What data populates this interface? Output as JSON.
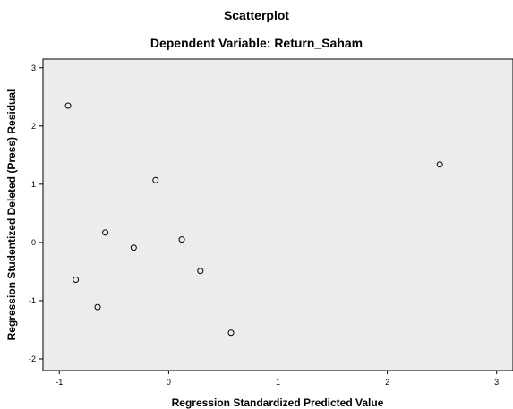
{
  "chart_data": {
    "type": "scatter",
    "title": "Scatterplot",
    "subtitle": "Dependent Variable: Return_Saham",
    "xlabel": "Regression Standardized Predicted Value",
    "ylabel": "Regression Studentized Deleted (Press) Residual",
    "xlim": [
      -1.15,
      3.15
    ],
    "ylim": [
      -2.2,
      3.15
    ],
    "xticks": [
      -1,
      0,
      1,
      2,
      3
    ],
    "yticks": [
      3,
      2,
      1,
      0,
      -1,
      -2
    ],
    "xtick_labels": [
      "-1",
      "0",
      "1",
      "2",
      "3"
    ],
    "ytick_labels": [
      "3",
      "2",
      "1",
      "0",
      "-1",
      "-2"
    ],
    "grid": false,
    "points": [
      {
        "x": -0.92,
        "y": 2.35
      },
      {
        "x": -0.12,
        "y": 1.07
      },
      {
        "x": 2.48,
        "y": 1.34
      },
      {
        "x": -0.58,
        "y": 0.17
      },
      {
        "x": -0.32,
        "y": -0.09
      },
      {
        "x": 0.12,
        "y": 0.05
      },
      {
        "x": 0.29,
        "y": -0.49
      },
      {
        "x": -0.85,
        "y": -0.64
      },
      {
        "x": -0.65,
        "y": -1.11
      },
      {
        "x": 0.57,
        "y": -1.55
      }
    ],
    "colors": {
      "plot_background": "#ececec",
      "frame": "#000000",
      "marker_edge": "#000000",
      "marker_fill": "#ececec"
    }
  }
}
